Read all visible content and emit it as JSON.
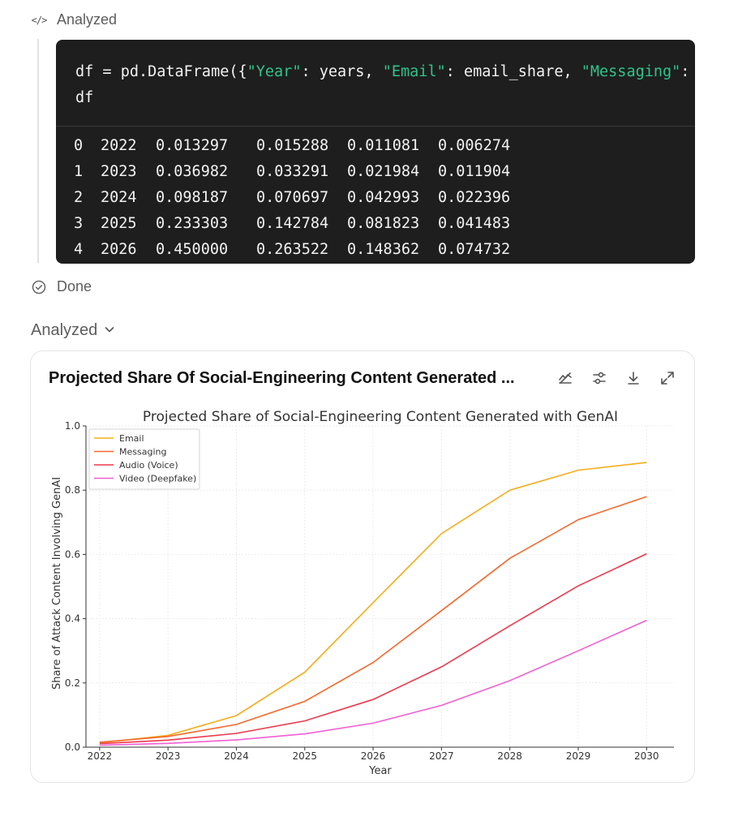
{
  "header": {
    "status_analyzed": "Analyzed",
    "status_done": "Done",
    "analyzed_toggle_label": "Analyzed"
  },
  "code": {
    "line1": {
      "p1": "df = pd.DataFrame({",
      "s1": "\"Year\"",
      "p2": ": years, ",
      "s2": "\"Email\"",
      "p3": ": email_share, ",
      "s3": "\"Messaging\"",
      "p4": ":"
    },
    "line2": "df"
  },
  "output": {
    "rows": [
      [
        "0",
        "2022",
        "0.013297",
        "0.015288",
        "0.011081",
        "0.006274"
      ],
      [
        "1",
        "2023",
        "0.036982",
        "0.033291",
        "0.021984",
        "0.011904"
      ],
      [
        "2",
        "2024",
        "0.098187",
        "0.070697",
        "0.042993",
        "0.022396"
      ],
      [
        "3",
        "2025",
        "0.233303",
        "0.142784",
        "0.081823",
        "0.041483"
      ],
      [
        "4",
        "2026",
        "0.450000",
        "0.263522",
        "0.148362",
        "0.074732"
      ]
    ]
  },
  "card": {
    "title": "Projected Share Of Social-Engineering Content Generated ...",
    "tools": [
      "switch-chart-icon",
      "settings-sliders-icon",
      "download-icon",
      "expand-icon"
    ]
  },
  "chart_data": {
    "type": "line",
    "title": "Projected Share of Social-Engineering Content Generated with GenAI",
    "xlabel": "Year",
    "ylabel": "Share of Attack Content Involving GenAI",
    "x": [
      2022,
      2023,
      2024,
      2025,
      2026,
      2027,
      2028,
      2029,
      2030
    ],
    "xlim": [
      2021.8,
      2030.4
    ],
    "ylim": [
      0,
      1.0
    ],
    "yticks": [
      0.0,
      0.2,
      0.4,
      0.6,
      0.8,
      1.0
    ],
    "ytick_labels": [
      "0.0",
      "0.2",
      "0.4",
      "0.6",
      "0.8",
      "1.0"
    ],
    "grid": true,
    "legend": "top-left",
    "series": [
      {
        "name": "Email",
        "color": "#f5ad1c",
        "values": [
          0.013297,
          0.036982,
          0.098187,
          0.233303,
          0.45,
          0.665,
          0.8,
          0.862,
          0.886
        ]
      },
      {
        "name": "Messaging",
        "color": "#f2692b",
        "values": [
          0.015288,
          0.033291,
          0.070697,
          0.142784,
          0.263522,
          0.425,
          0.588,
          0.708,
          0.78
        ]
      },
      {
        "name": "Audio (Voice)",
        "color": "#ec3a4d",
        "values": [
          0.011081,
          0.021984,
          0.042993,
          0.081823,
          0.148362,
          0.25,
          0.378,
          0.502,
          0.602
        ]
      },
      {
        "name": "Video (Deepfake)",
        "color": "#f25fd3",
        "values": [
          0.006274,
          0.011904,
          0.022396,
          0.041483,
          0.074732,
          0.13,
          0.207,
          0.3,
          0.395
        ]
      }
    ]
  }
}
